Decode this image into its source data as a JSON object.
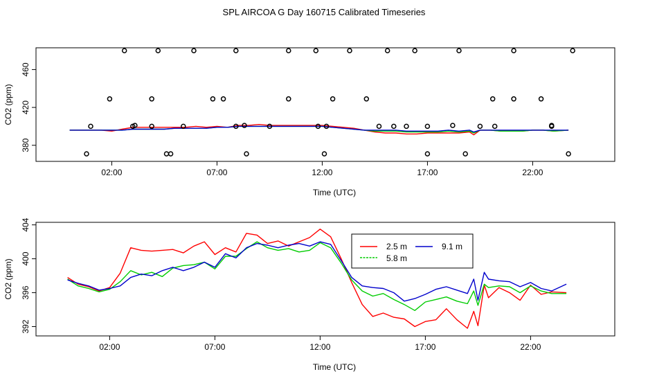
{
  "page": {
    "title": "SPL AIRCOA G  Day 160715  Calibrated Timeseries"
  },
  "chart_data": [
    {
      "type": "line",
      "panel": "top",
      "xlabel": "Time (UTC)",
      "ylabel": "CO2 (ppm)",
      "xlim": [
        -1.6,
        25.9
      ],
      "ylim": [
        363,
        483
      ],
      "xticks": [
        2,
        7,
        12,
        17,
        22
      ],
      "xtick_labels": [
        "02:00",
        "07:00",
        "12:00",
        "17:00",
        "22:00"
      ],
      "yticks": [
        380,
        420,
        460
      ],
      "ytick_labels": [
        "380",
        "420",
        "460"
      ],
      "series": [
        {
          "name": "2.5 m",
          "color": "#ff0000",
          "x": [
            0,
            1,
            1.5,
            2,
            2.5,
            3,
            3.5,
            4,
            4.5,
            5,
            5.5,
            6,
            6.5,
            7,
            7.5,
            8,
            8.5,
            9,
            9.5,
            10,
            10.5,
            11,
            11.5,
            12,
            12.5,
            13,
            13.5,
            14,
            14.5,
            15,
            15.5,
            16,
            16.5,
            17,
            17.5,
            18,
            18.5,
            19,
            19.2,
            19.5,
            20,
            20.5,
            21,
            21.5,
            22,
            22.5,
            23,
            23.7
          ],
          "values": [
            396,
            396,
            396,
            395,
            397,
            399,
            399,
            399,
            399,
            399,
            399,
            400,
            399,
            400,
            399,
            401,
            401,
            402,
            401,
            401,
            401,
            401,
            401,
            401,
            400,
            399,
            398,
            396,
            394,
            393,
            393,
            392,
            392,
            393,
            393,
            393,
            393,
            394,
            391,
            396,
            396,
            395,
            395,
            395,
            396,
            396,
            395,
            396
          ]
        },
        {
          "name": "5.8 m",
          "color": "#00cc00",
          "x": [
            0,
            1,
            1.5,
            2,
            2.5,
            3,
            3.5,
            4,
            4.5,
            5,
            5.5,
            6,
            6.5,
            7,
            7.5,
            8,
            8.5,
            9,
            9.5,
            10,
            10.5,
            11,
            11.5,
            12,
            12.5,
            13,
            13.5,
            14,
            14.5,
            15,
            15.5,
            16,
            16.5,
            17,
            17.5,
            18,
            18.5,
            19,
            19.2,
            19.5,
            20,
            20.5,
            21,
            21.5,
            22,
            22.5,
            23,
            23.7
          ],
          "values": [
            396,
            396,
            396,
            396,
            396,
            397,
            397,
            397,
            397,
            398,
            398,
            398,
            398,
            399,
            399,
            400,
            400,
            400,
            400,
            400,
            400,
            400,
            400,
            400,
            399,
            398,
            397,
            396,
            395,
            395,
            395,
            394,
            394,
            394,
            394,
            395,
            394,
            395,
            393,
            396,
            396,
            395,
            395,
            395,
            396,
            396,
            395,
            396
          ]
        },
        {
          "name": "9.1 m",
          "color": "#0000cc",
          "x": [
            0,
            1,
            1.5,
            2,
            2.5,
            3,
            3.5,
            4,
            4.5,
            5,
            5.5,
            6,
            6.5,
            7,
            7.5,
            8,
            8.5,
            9,
            9.5,
            10,
            10.5,
            11,
            11.5,
            12,
            12.5,
            13,
            13.5,
            14,
            14.5,
            15,
            15.5,
            16,
            16.5,
            17,
            17.5,
            18,
            18.5,
            19,
            19.2,
            19.5,
            20,
            20.5,
            21,
            21.5,
            22,
            22.5,
            23,
            23.7
          ],
          "values": [
            396,
            396,
            396,
            396,
            396,
            397,
            397,
            397,
            397,
            398,
            398,
            398,
            398,
            399,
            399,
            400,
            400,
            400,
            400,
            400,
            400,
            400,
            400,
            400,
            399,
            398,
            397,
            396,
            396,
            396,
            396,
            395,
            395,
            395,
            395,
            396,
            395,
            396,
            394,
            396,
            396,
            396,
            396,
            396,
            396,
            396,
            396,
            396
          ]
        }
      ],
      "calibration_points": {
        "x": [
          4.6,
          8.4,
          12.1,
          1.0,
          5.4,
          8.3,
          14.7,
          18.2,
          20.2,
          22.9,
          0.8,
          1.9,
          3.0,
          3.1,
          3.9,
          4.8,
          6.8,
          7.3,
          7.9,
          9.5,
          10.4,
          11.8,
          12.2,
          14.1,
          15.4,
          16.0,
          17.0,
          18.8,
          19.5,
          20.1,
          21.1,
          22.4,
          23.7,
          2.6,
          3.9,
          4.2,
          5.9,
          7.9,
          10.4,
          11.7,
          12.5,
          13.3,
          15.1,
          16.4,
          17.0,
          18.5,
          21.1,
          22.9,
          23.9
        ],
        "y": [
          371,
          371,
          371,
          400,
          400,
          401,
          400,
          401,
          400,
          401,
          371,
          429,
          400,
          401,
          400,
          371,
          429,
          429,
          400,
          400,
          429,
          400,
          400,
          429,
          400,
          400,
          400,
          371,
          400,
          429,
          429,
          429,
          371,
          480,
          429,
          480,
          480,
          480,
          480,
          480,
          429,
          480,
          480,
          480,
          371,
          480,
          480,
          400,
          480
        ]
      }
    },
    {
      "type": "line",
      "panel": "bottom",
      "xlabel": "Time (UTC)",
      "ylabel": "CO2 (ppm)",
      "xlim": [
        -1.5,
        26.0
      ],
      "ylim": [
        390.9,
        404.3
      ],
      "xticks": [
        2,
        7,
        12,
        17,
        22
      ],
      "xtick_labels": [
        "02:00",
        "07:00",
        "12:00",
        "17:00",
        "22:00"
      ],
      "yticks": [
        392,
        396,
        400,
        404
      ],
      "ytick_labels": [
        "392",
        "396",
        "400",
        "404"
      ],
      "legend": {
        "placement": "top-center",
        "entries": [
          "2.5 m",
          "9.1 m",
          "5.8 m"
        ]
      },
      "series": [
        {
          "name": "2.5 m",
          "color": "#ff0000",
          "x": [
            0,
            0.5,
            1,
            1.5,
            2,
            2.5,
            3,
            3.5,
            4,
            4.5,
            5,
            5.5,
            6,
            6.5,
            7,
            7.5,
            8,
            8.5,
            9,
            9.5,
            10,
            10.5,
            11,
            11.5,
            12,
            12.5,
            13,
            13.5,
            14,
            14.5,
            15,
            15.5,
            16,
            16.5,
            17,
            17.5,
            18,
            18.5,
            19,
            19.3,
            19.5,
            19.8,
            20,
            20.5,
            21,
            21.5,
            22,
            22.5,
            23,
            23.7
          ],
          "values": [
            397.8,
            397.0,
            396.7,
            396.2,
            396.6,
            398.3,
            401.3,
            401.0,
            400.9,
            401.0,
            401.1,
            400.7,
            401.5,
            402.0,
            400.5,
            401.3,
            400.8,
            403.0,
            402.8,
            401.8,
            402.1,
            401.5,
            402.0,
            402.5,
            403.5,
            402.6,
            400.0,
            397.2,
            394.6,
            393.2,
            393.6,
            393.1,
            392.9,
            392.0,
            392.6,
            392.8,
            394.1,
            392.8,
            391.8,
            393.8,
            392.1,
            396.9,
            395.4,
            396.6,
            396.0,
            395.1,
            396.9,
            395.8,
            396.1,
            396.0
          ]
        },
        {
          "name": "5.8 m",
          "color": "#00cc00",
          "x": [
            0,
            0.5,
            1,
            1.5,
            2,
            2.5,
            3,
            3.5,
            4,
            4.5,
            5,
            5.5,
            6,
            6.5,
            7,
            7.5,
            8,
            8.5,
            9,
            9.5,
            10,
            10.5,
            11,
            11.5,
            12,
            12.5,
            13,
            13.5,
            14,
            14.5,
            15,
            15.5,
            16,
            16.5,
            17,
            17.5,
            18,
            18.5,
            19,
            19.3,
            19.5,
            19.8,
            20,
            20.5,
            21,
            21.5,
            22,
            22.5,
            23,
            23.7
          ],
          "values": [
            397.6,
            396.8,
            396.5,
            396.1,
            396.4,
            397.3,
            398.6,
            398.1,
            398.4,
            397.9,
            398.9,
            399.2,
            399.3,
            399.6,
            398.8,
            400.3,
            400.3,
            401.2,
            402.0,
            401.3,
            401.0,
            401.2,
            400.8,
            401.0,
            401.9,
            401.3,
            399.5,
            397.5,
            396.2,
            395.6,
            395.9,
            395.2,
            394.6,
            393.9,
            394.9,
            395.2,
            395.5,
            395.0,
            394.7,
            396.2,
            394.5,
            397.0,
            396.6,
            396.8,
            396.7,
            396.0,
            396.8,
            396.2,
            395.9,
            395.9
          ]
        },
        {
          "name": "9.1 m",
          "color": "#0000cc",
          "x": [
            0,
            0.5,
            1,
            1.5,
            2,
            2.5,
            3,
            3.5,
            4,
            4.5,
            5,
            5.5,
            6,
            6.5,
            7,
            7.5,
            8,
            8.5,
            9,
            9.5,
            10,
            10.5,
            11,
            11.5,
            12,
            12.5,
            13,
            13.5,
            14,
            14.5,
            15,
            15.5,
            16,
            16.5,
            17,
            17.5,
            18,
            18.5,
            19,
            19.3,
            19.5,
            19.8,
            20,
            20.5,
            21,
            21.5,
            22,
            22.5,
            23,
            23.7
          ],
          "values": [
            397.5,
            397.1,
            396.8,
            396.3,
            396.5,
            396.8,
            397.8,
            398.2,
            398.0,
            398.6,
            399.0,
            398.6,
            399.0,
            399.6,
            399.0,
            400.6,
            400.1,
            401.3,
            401.8,
            401.6,
            401.3,
            401.6,
            401.8,
            401.5,
            402.0,
            401.7,
            399.8,
            397.8,
            396.8,
            396.6,
            396.5,
            396.0,
            395.0,
            395.3,
            395.8,
            396.4,
            396.7,
            396.3,
            395.9,
            397.6,
            395.1,
            398.4,
            397.6,
            397.4,
            397.3,
            396.7,
            397.2,
            396.5,
            396.2,
            397.0
          ]
        }
      ]
    }
  ]
}
